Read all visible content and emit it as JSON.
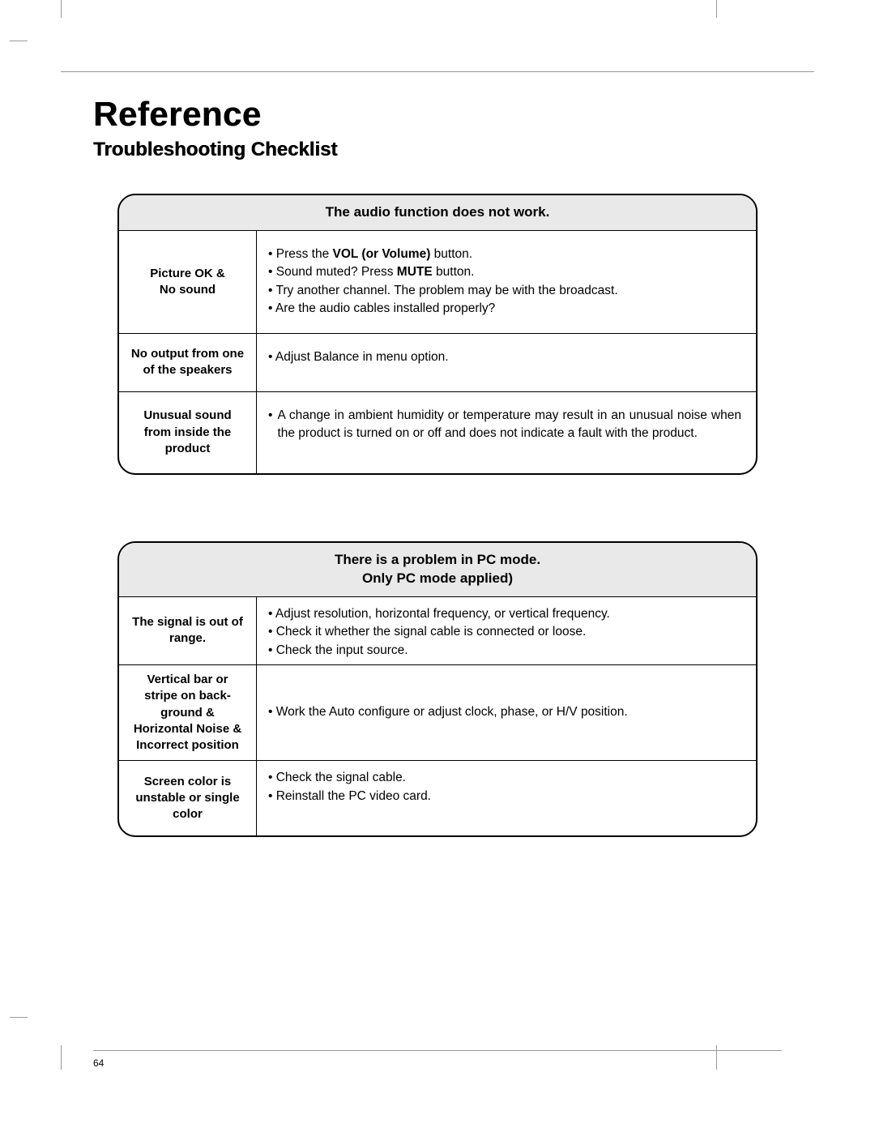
{
  "crop_color": "#999999",
  "heading": "Reference",
  "subheading": "Troubleshooting Checklist",
  "page_number": "64",
  "tables": [
    {
      "title": "The audio function does not work.",
      "rows": [
        {
          "symptom": "Picture OK &\nNo sound",
          "html": "• Press the <b>VOL (or Volume)</b> button.<br>• Sound muted? Press <b>MUTE</b> button.<br>• Try another channel. The problem may be with the broadcast.<br>• Are the audio cables installed properly?"
        },
        {
          "symptom": "No output from one\nof the speakers",
          "html": "• Adjust Balance in menu option."
        },
        {
          "symptom": "Unusual sound\nfrom inside the\nproduct",
          "html": "<div class='bullet'><span class='dot'>•</span><span class='txt just'>A change in ambient humidity or temperature may result in an unusual noise when the product is turned on or off and does not indicate a fault with the product.</span></div>"
        }
      ]
    },
    {
      "title": "There is a problem in PC mode.\nOnly PC mode applied)",
      "rows": [
        {
          "symptom": "The signal is out of\nrange.",
          "html": "• Adjust resolution, horizontal frequency, or vertical frequency.<br>• Check it whether the signal cable is connected or loose.<br>• Check the input source."
        },
        {
          "symptom": "Vertical bar or\nstripe on back-\nground &\nHorizontal Noise &\nIncorrect position",
          "html": "• Work the Auto configure or adjust clock, phase, or H/V position."
        },
        {
          "symptom": "Screen color is\nunstable or single\ncolor",
          "html": "• Check the signal cable.<br>• Reinstall the PC video card."
        }
      ]
    }
  ]
}
